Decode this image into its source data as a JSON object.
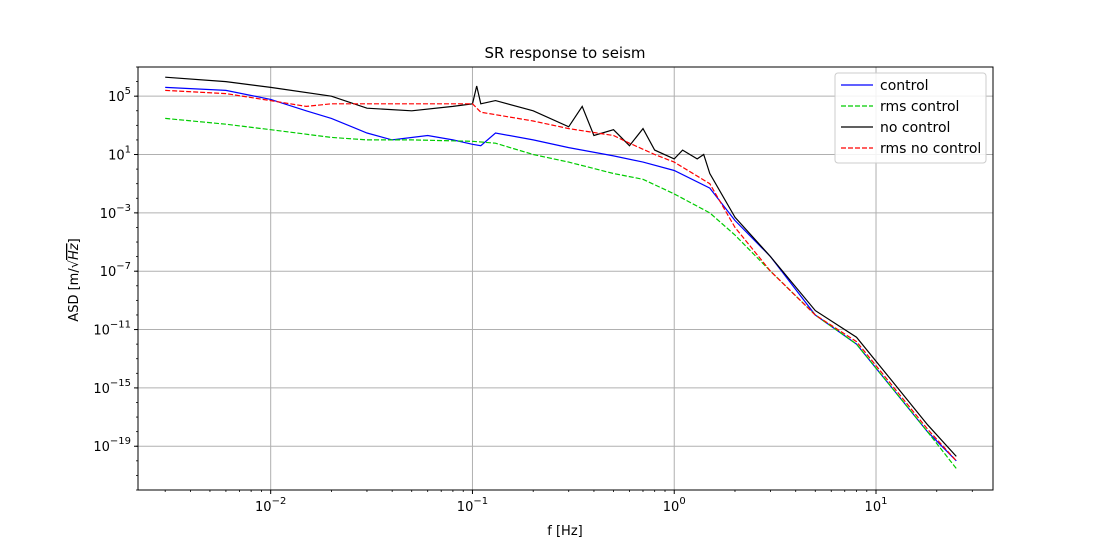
{
  "chart_data": {
    "type": "line",
    "title": "SR response to seism",
    "xlabel": "f [Hz]",
    "ylabel_prefix": "ASD [m/",
    "ylabel_radical": "√",
    "ylabel_radicand": "Hz",
    "ylabel_suffix": "]",
    "xscale": "log",
    "yscale": "log",
    "xlim": [
      0.0022,
      38
    ],
    "ylim": [
      1e-22,
      10000000.0
    ],
    "grid": true,
    "legend_position": "top-right",
    "x_ticks": [
      {
        "value": 0.01,
        "base": "10",
        "exp": "−2"
      },
      {
        "value": 0.1,
        "base": "10",
        "exp": "−1"
      },
      {
        "value": 1,
        "base": "10",
        "exp": "0"
      },
      {
        "value": 10,
        "base": "10",
        "exp": "1"
      }
    ],
    "y_ticks": [
      {
        "value": 100000.0,
        "base": "10",
        "exp": "5"
      },
      {
        "value": 10,
        "base": "10",
        "exp": "1"
      },
      {
        "value": 0.001,
        "base": "10",
        "exp": "−3"
      },
      {
        "value": 1e-07,
        "base": "10",
        "exp": "−7"
      },
      {
        "value": 1e-11,
        "base": "10",
        "exp": "−11"
      },
      {
        "value": 1e-15,
        "base": "10",
        "exp": "−15"
      },
      {
        "value": 1e-19,
        "base": "10",
        "exp": "−19"
      }
    ],
    "series": [
      {
        "name": "control",
        "color": "#0000ff",
        "dash": "solid",
        "points": [
          [
            0.003,
            400000.0
          ],
          [
            0.006,
            250000.0
          ],
          [
            0.01,
            60000.0
          ],
          [
            0.015,
            10000.0
          ],
          [
            0.02,
            3000.0
          ],
          [
            0.03,
            300.0
          ],
          [
            0.04,
            100.0
          ],
          [
            0.06,
            200.0
          ],
          [
            0.08,
            100.0
          ],
          [
            0.1,
            50
          ],
          [
            0.11,
            40
          ],
          [
            0.13,
            300
          ],
          [
            0.2,
            100
          ],
          [
            0.3,
            30
          ],
          [
            0.5,
            8
          ],
          [
            0.7,
            3
          ],
          [
            1.0,
            0.8
          ],
          [
            1.5,
            0.05
          ],
          [
            2,
            0.0003
          ],
          [
            3,
            1e-06
          ],
          [
            5,
            1e-10
          ],
          [
            8,
            1e-12
          ],
          [
            12,
            1e-15
          ],
          [
            18,
            1e-18
          ],
          [
            25,
            1e-20
          ]
        ]
      },
      {
        "name": "rms control",
        "color": "#00cc00",
        "dash": "dashed",
        "points": [
          [
            0.003,
            3000.0
          ],
          [
            0.006,
            1200.0
          ],
          [
            0.01,
            500.0
          ],
          [
            0.02,
            150.0
          ],
          [
            0.03,
            100.0
          ],
          [
            0.05,
            100.0
          ],
          [
            0.1,
            80
          ],
          [
            0.13,
            60
          ],
          [
            0.2,
            10
          ],
          [
            0.3,
            3
          ],
          [
            0.5,
            0.5
          ],
          [
            0.7,
            0.2
          ],
          [
            1.0,
            0.02
          ],
          [
            1.5,
            0.001
          ],
          [
            2,
            3e-05
          ],
          [
            3,
            1e-07
          ],
          [
            5,
            1e-10
          ],
          [
            8,
            1e-12
          ],
          [
            12,
            1e-15
          ],
          [
            18,
            1e-18
          ],
          [
            25,
            3e-21
          ]
        ]
      },
      {
        "name": "no control",
        "color": "#000000",
        "dash": "solid",
        "points": [
          [
            0.003,
            2000000.0
          ],
          [
            0.006,
            1000000.0
          ],
          [
            0.01,
            400000.0
          ],
          [
            0.02,
            100000.0
          ],
          [
            0.03,
            15000.0
          ],
          [
            0.05,
            10000.0
          ],
          [
            0.08,
            20000.0
          ],
          [
            0.1,
            30000.0
          ],
          [
            0.105,
            500000.0
          ],
          [
            0.11,
            30000.0
          ],
          [
            0.13,
            50000.0
          ],
          [
            0.2,
            10000.0
          ],
          [
            0.3,
            800
          ],
          [
            0.35,
            20000.0
          ],
          [
            0.4,
            200
          ],
          [
            0.5,
            500
          ],
          [
            0.6,
            40
          ],
          [
            0.7,
            600
          ],
          [
            0.8,
            20
          ],
          [
            1.0,
            5
          ],
          [
            1.1,
            20
          ],
          [
            1.3,
            5
          ],
          [
            1.4,
            10
          ],
          [
            1.5,
            0.5
          ],
          [
            2,
            0.0005
          ],
          [
            3,
            1e-06
          ],
          [
            5,
            2e-10
          ],
          [
            8,
            3e-12
          ],
          [
            12,
            3e-15
          ],
          [
            18,
            3e-18
          ],
          [
            25,
            2e-20
          ]
        ]
      },
      {
        "name": "rms no control",
        "color": "#ff0000",
        "dash": "dashed",
        "points": [
          [
            0.003,
            250000.0
          ],
          [
            0.006,
            150000.0
          ],
          [
            0.01,
            50000.0
          ],
          [
            0.015,
            20000.0
          ],
          [
            0.02,
            30000.0
          ],
          [
            0.05,
            30000.0
          ],
          [
            0.1,
            30000.0
          ],
          [
            0.11,
            8000.0
          ],
          [
            0.2,
            2000.0
          ],
          [
            0.3,
            600
          ],
          [
            0.5,
            200
          ],
          [
            0.6,
            60
          ],
          [
            0.8,
            10
          ],
          [
            1.0,
            3
          ],
          [
            1.5,
            0.1
          ],
          [
            2,
            0.0001
          ],
          [
            3,
            1e-07
          ],
          [
            5,
            1e-10
          ],
          [
            8,
            1.5e-12
          ],
          [
            12,
            1.5e-15
          ],
          [
            18,
            1.5e-18
          ],
          [
            25,
            1e-20
          ]
        ]
      }
    ]
  }
}
